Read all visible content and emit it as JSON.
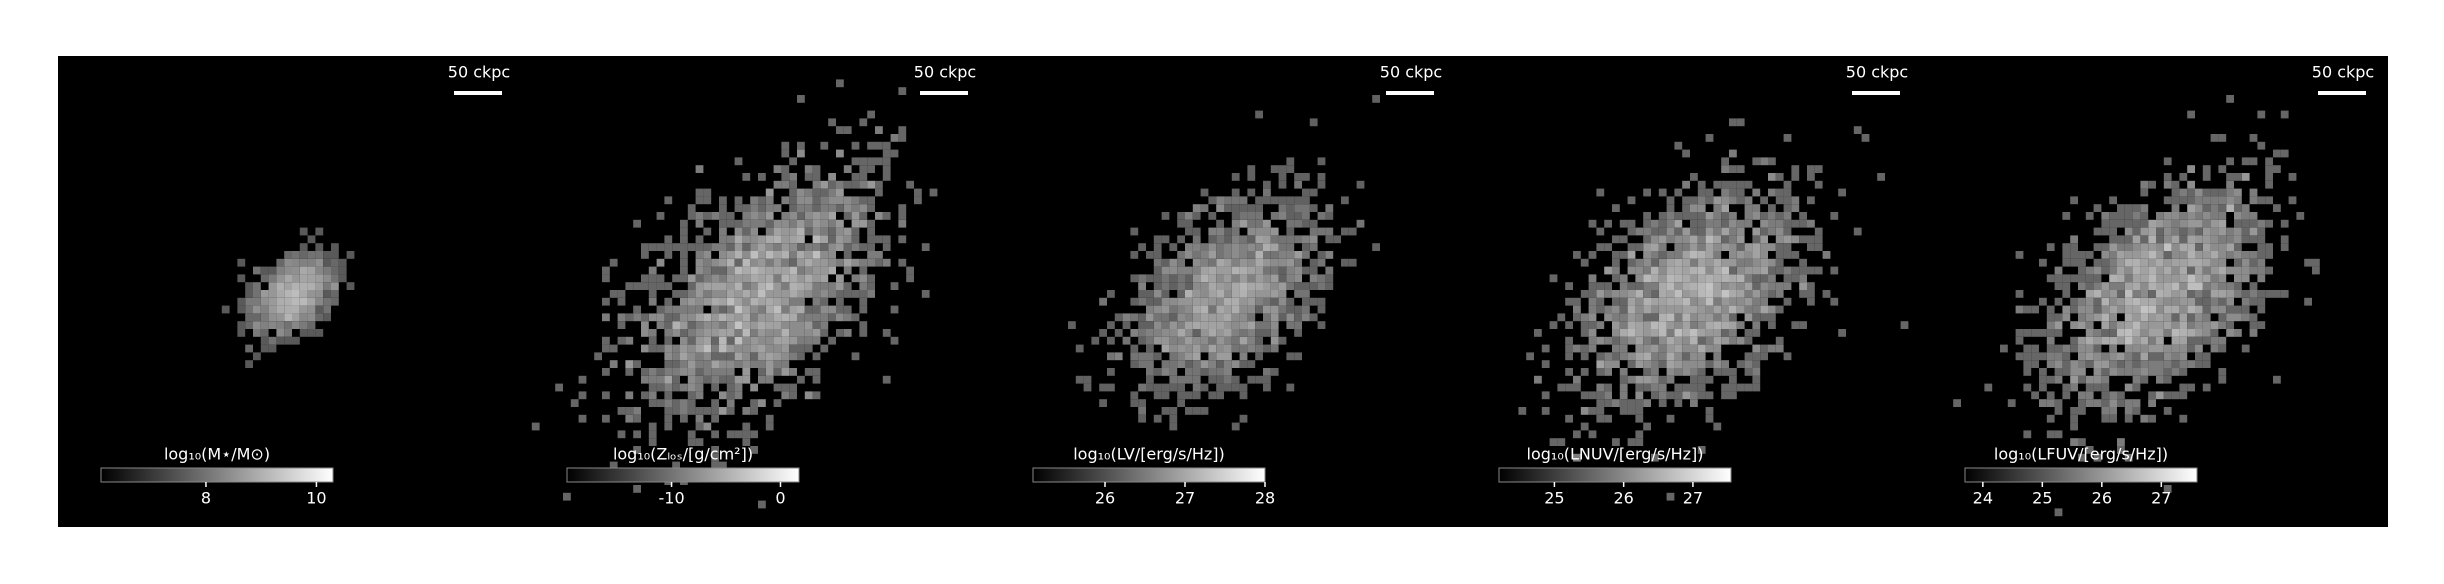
{
  "chart_data": [
    {
      "type": "heatmap",
      "scalebar": "50 ckpc",
      "colorbar": {
        "label": "log₁₀(M⋆/M⊙)",
        "lim": [
          6.1,
          10.3
        ],
        "ticks": [
          8,
          10
        ]
      }
    },
    {
      "type": "heatmap",
      "scalebar": "50 ckpc",
      "colorbar": {
        "label": "log₁₀(Zₗₒₛ/[g/cm²])",
        "lim": [
          -19.6,
          1.7
        ],
        "ticks": [
          -10,
          0
        ]
      }
    },
    {
      "type": "heatmap",
      "scalebar": "50 ckpc",
      "colorbar": {
        "label": "log₁₀(LV/[erg/s/Hz])",
        "lim": [
          25.1,
          28.0
        ],
        "ticks": [
          26,
          27,
          28
        ]
      }
    },
    {
      "type": "heatmap",
      "scalebar": "50 ckpc",
      "colorbar": {
        "label": "log₁₀(LNUV/[erg/s/Hz])",
        "lim": [
          24.2,
          27.55
        ],
        "ticks": [
          25,
          26,
          27
        ]
      }
    },
    {
      "type": "heatmap",
      "scalebar": "50 ckpc",
      "colorbar": {
        "label": "log₁₀(LFUV/[erg/s/Hz])",
        "lim": [
          23.7,
          27.6
        ],
        "ticks": [
          24,
          25,
          26,
          27
        ]
      }
    }
  ]
}
